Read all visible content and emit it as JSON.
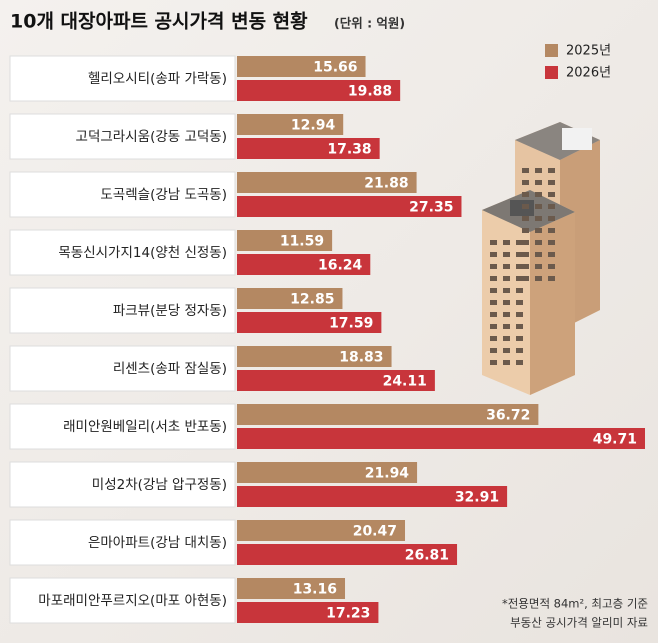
{
  "chart_data": {
    "type": "bar",
    "orientation": "horizontal",
    "title": "10개 대장아파트 공시가격 변동 현황",
    "subtitle": "(단위 : 억원)",
    "categories": [
      "헬리오시티(송파 가락동)",
      "고덕그라시움(강동 고덕동)",
      "도곡렉슬(강남 도곡동)",
      "목동신시가지14(양천 신정동)",
      "파크뷰(분당 정자동)",
      "리센츠(송파 잠실동)",
      "래미안원베일리(서초 반포동)",
      "미성2차(강남 압구정동)",
      "은마아파트(강남 대치동)",
      "마포래미안푸르지오(마포 아현동)"
    ],
    "series": [
      {
        "name": "2025년",
        "color": "#b48862",
        "values": [
          15.66,
          12.94,
          21.88,
          11.59,
          12.85,
          18.83,
          36.72,
          21.94,
          20.47,
          13.16
        ]
      },
      {
        "name": "2026년",
        "color": "#c8353b",
        "values": [
          19.88,
          17.38,
          27.35,
          16.24,
          17.59,
          24.11,
          49.71,
          32.91,
          26.81,
          17.23
        ]
      }
    ],
    "legend": "top-right",
    "notes": [
      "*전용면적 84m², 최고층 기준",
      "부동산 공시가격 알리미 자료"
    ]
  }
}
